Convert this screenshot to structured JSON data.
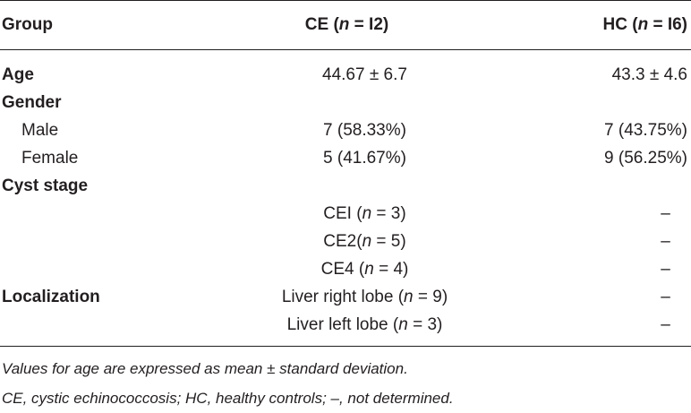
{
  "table": {
    "headers": {
      "group": "Group",
      "ce_prefix": "CE (",
      "ce_n": "n",
      "ce_suffix": " = I2)",
      "hc_prefix": "HC (",
      "hc_n": "n",
      "hc_suffix": " = I6)"
    },
    "rows": {
      "age": {
        "label": "Age",
        "ce": "44.67 ± 6.7",
        "hc": "43.3 ± 4.6"
      },
      "gender": {
        "label": "Gender"
      },
      "male": {
        "label": "Male",
        "ce": "7 (58.33%)",
        "hc": "7 (43.75%)"
      },
      "female": {
        "label": "Female",
        "ce": "5 (41.67%)",
        "hc": "9 (56.25%)"
      },
      "cyst_stage": {
        "label": "Cyst stage"
      },
      "ce1": {
        "ce_prefix": "CEI (",
        "n": "n",
        "ce_suffix": " = 3)",
        "hc": "–"
      },
      "ce2": {
        "ce_prefix": "CE2(",
        "n": "n",
        "ce_suffix": " = 5)",
        "hc": "–"
      },
      "ce4": {
        "ce_prefix": "CE4 (",
        "n": "n",
        "ce_suffix": " = 4)",
        "hc": "–"
      },
      "localization": {
        "label": "Localization",
        "ce_prefix": "Liver right lobe (",
        "n": "n",
        "ce_suffix": " = 9)",
        "hc": "–"
      },
      "left_lobe": {
        "ce_prefix": "Liver left lobe (",
        "n": "n",
        "ce_suffix": " = 3)",
        "hc": "–"
      }
    }
  },
  "footnotes": {
    "line1": "Values for age are expressed as mean ± standard deviation.",
    "line2": "CE, cystic echinococcosis; HC, healthy controls; –, not determined."
  }
}
